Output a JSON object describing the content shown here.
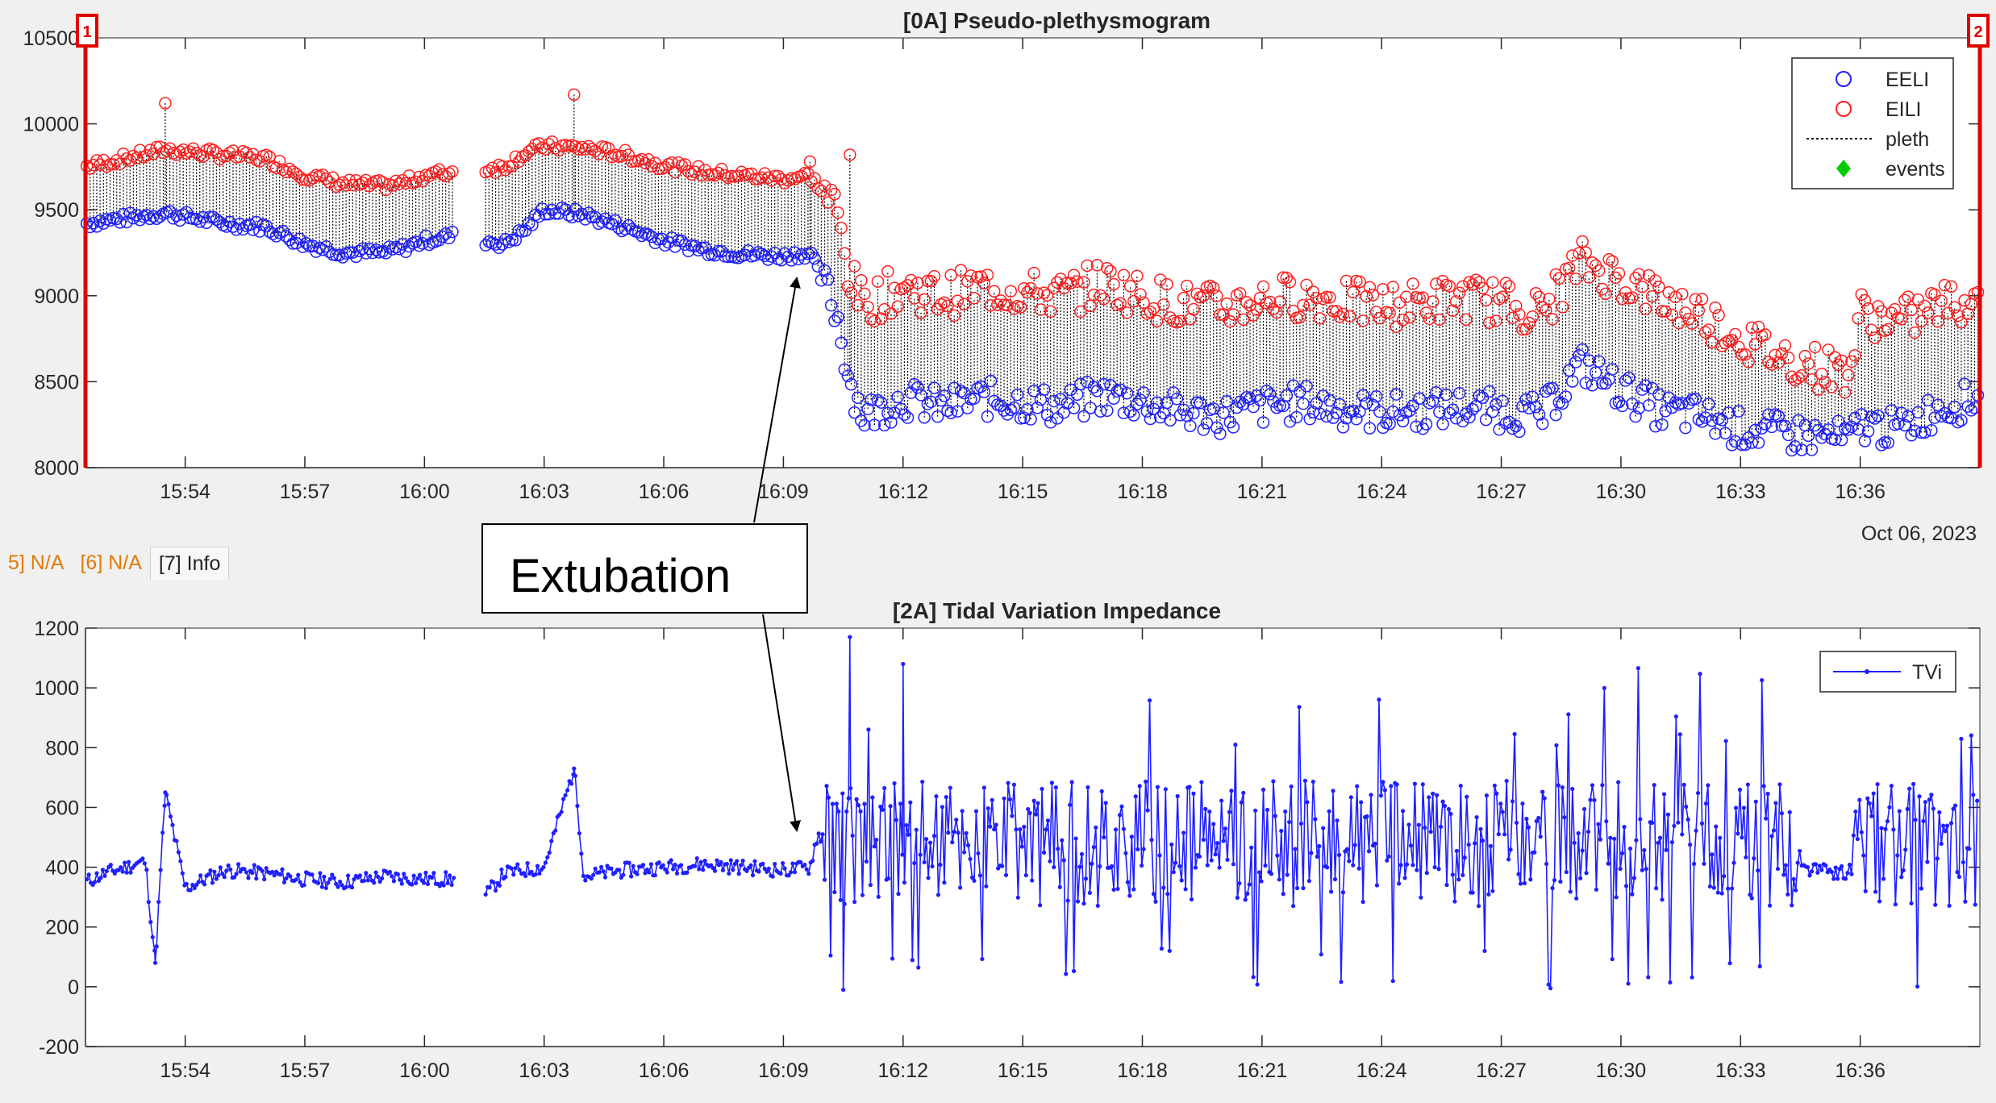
{
  "tabs": [
    {
      "label": "5] N/A",
      "state": "na"
    },
    {
      "label": "[6] N/A",
      "state": "na"
    },
    {
      "label": "[7] Info",
      "state": "active"
    }
  ],
  "annotation": {
    "text": "Extubation"
  },
  "chart_data": [
    {
      "type": "scatter",
      "title": "[0A] Pseudo-plethysmogram",
      "xlabel": "",
      "ylabel": "",
      "date_label": "Oct 06, 2023",
      "x_unit": "time (HH:MM on Oct 06, 2023)",
      "xlim": [
        "15:51:30",
        "16:39:00"
      ],
      "ylim": [
        8000,
        10500
      ],
      "yticks": [
        8000,
        8500,
        9000,
        9500,
        10000,
        10500
      ],
      "xticks": [
        "15:54",
        "15:57",
        "16:00",
        "16:03",
        "16:06",
        "16:09",
        "16:12",
        "16:15",
        "16:18",
        "16:21",
        "16:24",
        "16:27",
        "16:30",
        "16:33",
        "16:36"
      ],
      "legend_position": "top-right",
      "legend": [
        "EELI",
        "EILI",
        "pleth",
        "events"
      ],
      "cursors": [
        {
          "label": "1",
          "x": "15:51:30"
        },
        {
          "label": "2",
          "x": "16:39:00"
        }
      ],
      "colors": {
        "EELI": "#1f1fff",
        "EILI": "#ff1f1f",
        "pleth": "#000000",
        "events": "#00cc00",
        "cursor": "#e00000"
      },
      "series": [
        {
          "name": "EELI",
          "marker": "circle-open",
          "x": [
            "15:51:30",
            "15:52:30",
            "15:53:30",
            "15:55:00",
            "15:56:00",
            "15:57:00",
            "15:58:00",
            "15:59:00",
            "15:59:30",
            "16:00:00",
            "16:00:45",
            "16:02:00",
            "16:02:30",
            "16:03:00",
            "16:04:00",
            "16:05:00",
            "16:06:00",
            "16:07:00",
            "16:08:00",
            "16:09:00",
            "16:09:40",
            "16:10:20",
            "16:10:40",
            "16:11:00",
            "16:12:00",
            "16:13:00",
            "16:14:00",
            "16:15:00",
            "16:16:00",
            "16:17:00",
            "16:18:00",
            "16:19:00",
            "16:20:00",
            "16:21:00",
            "16:22:00",
            "16:23:00",
            "16:24:00",
            "16:25:00",
            "16:26:00",
            "16:27:00",
            "16:28:00",
            "16:29:00",
            "16:30:00",
            "16:31:00",
            "16:32:00",
            "16:33:00",
            "16:34:00",
            "16:35:00",
            "16:35:45",
            "16:36:00",
            "16:37:00",
            "16:38:00",
            "16:39:00"
          ],
          "y": [
            9420,
            9450,
            9480,
            9420,
            9400,
            9300,
            9250,
            9250,
            9280,
            9320,
            9350,
            9300,
            9380,
            9500,
            9470,
            9400,
            9320,
            9270,
            9240,
            9230,
            9250,
            8900,
            8500,
            8300,
            8400,
            8350,
            8400,
            8380,
            8350,
            8420,
            8380,
            8320,
            8300,
            8350,
            8380,
            8340,
            8320,
            8330,
            8350,
            8330,
            8300,
            8600,
            8450,
            8330,
            8300,
            8220,
            8200,
            8180,
            8160,
            8250,
            8220,
            8350,
            8400
          ]
        },
        {
          "name": "EILI",
          "marker": "circle-open",
          "x": [
            "15:51:30",
            "15:52:30",
            "15:53:30",
            "15:55:00",
            "15:56:00",
            "15:57:00",
            "15:58:00",
            "15:59:00",
            "15:59:30",
            "16:00:00",
            "16:00:45",
            "16:02:00",
            "16:02:30",
            "16:03:00",
            "16:04:00",
            "16:05:00",
            "16:06:00",
            "16:07:00",
            "16:08:00",
            "16:09:00",
            "16:09:40",
            "16:10:20",
            "16:10:40",
            "16:11:00",
            "16:12:00",
            "16:13:00",
            "16:14:00",
            "16:15:00",
            "16:16:00",
            "16:17:00",
            "16:18:00",
            "16:19:00",
            "16:20:00",
            "16:21:00",
            "16:22:00",
            "16:23:00",
            "16:24:00",
            "16:25:00",
            "16:26:00",
            "16:27:00",
            "16:28:00",
            "16:29:00",
            "16:30:00",
            "16:31:00",
            "16:32:00",
            "16:33:00",
            "16:34:00",
            "16:35:00",
            "16:35:45",
            "16:36:00",
            "16:37:00",
            "16:38:00",
            "16:39:00"
          ],
          "y": [
            9750,
            9800,
            9850,
            9820,
            9800,
            9700,
            9650,
            9640,
            9660,
            9700,
            9720,
            9750,
            9830,
            9870,
            9860,
            9820,
            9760,
            9720,
            9700,
            9680,
            9700,
            9500,
            9100,
            8950,
            9050,
            9000,
            9050,
            9020,
            9000,
            9080,
            9000,
            8950,
            8930,
            8980,
            9000,
            8970,
            8940,
            8960,
            8990,
            8960,
            8900,
            9200,
            9100,
            8980,
            8900,
            8750,
            8650,
            8580,
            8560,
            8900,
            8850,
            8950,
            8980
          ]
        },
        {
          "name": "pleth",
          "line": "dotted",
          "note": "vertical dotted links from each EELI point to its EILI point"
        }
      ],
      "gaps": [
        [
          "16:00:45",
          "16:01:30"
        ]
      ]
    },
    {
      "type": "line",
      "title": "[2A] Tidal Variation Impedance",
      "xlabel": "",
      "ylabel": "",
      "date_label": "Oct 06, 2023",
      "x_unit": "time (HH:MM on Oct 06, 2023)",
      "xlim": [
        "15:51:30",
        "16:39:00"
      ],
      "ylim": [
        -200,
        1200
      ],
      "yticks": [
        -200,
        0,
        200,
        400,
        600,
        800,
        1000,
        1200
      ],
      "xticks": [
        "15:54",
        "15:57",
        "16:00",
        "16:03",
        "16:06",
        "16:09",
        "16:12",
        "16:15",
        "16:18",
        "16:21",
        "16:24",
        "16:27",
        "16:30",
        "16:33",
        "16:36"
      ],
      "legend_position": "top-right",
      "legend": [
        "TVi"
      ],
      "colors": {
        "TVi": "#1f1fff"
      },
      "series": [
        {
          "name": "TVi",
          "marker": "dot",
          "x": [
            "15:51:30",
            "15:52:00",
            "15:52:30",
            "15:53:00",
            "15:53:15",
            "15:53:30",
            "15:54:00",
            "15:55:00",
            "15:56:00",
            "15:57:00",
            "15:58:00",
            "15:59:00",
            "16:00:00",
            "16:00:45",
            "16:01:30",
            "16:02:00",
            "16:03:00",
            "16:03:45",
            "16:04:00",
            "16:05:00",
            "16:06:00",
            "16:07:00",
            "16:08:00",
            "16:09:00",
            "16:09:40",
            "16:10:00",
            "16:10:30",
            "16:10:40",
            "16:11:00",
            "16:11:30",
            "16:12:00",
            "16:12:30",
            "16:13:00",
            "16:14:00",
            "16:14:30",
            "16:15:00",
            "16:16:00",
            "16:17:00",
            "16:18:00",
            "16:19:00",
            "16:20:00",
            "16:21:00",
            "16:22:00",
            "16:23:00",
            "16:24:00",
            "16:25:00",
            "16:26:00",
            "16:27:00",
            "16:28:00",
            "16:29:00",
            "16:30:00",
            "16:31:00",
            "16:32:00",
            "16:33:00",
            "16:34:00",
            "16:35:00",
            "16:35:30",
            "16:36:00",
            "16:36:30",
            "16:37:00",
            "16:37:30",
            "16:38:00",
            "16:38:30",
            "16:39:00"
          ],
          "y": [
            350,
            380,
            400,
            420,
            80,
            650,
            330,
            390,
            380,
            360,
            350,
            370,
            360,
            null,
            300,
            380,
            400,
            730,
            370,
            390,
            400,
            410,
            400,
            390,
            400,
            600,
            0,
            1170,
            150,
            500,
            1080,
            200,
            560,
            600,
            150,
            650,
            600,
            480,
            640,
            500,
            0,
            560,
            500,
            780,
            550,
            520,
            600,
            450,
            560,
            500,
            580,
            480,
            520,
            700,
            400,
            390,
            380,
            400,
            780,
            150,
            500,
            400,
            700,
            450
          ]
        }
      ],
      "gaps": [
        [
          "16:00:45",
          "16:01:30"
        ]
      ]
    }
  ]
}
